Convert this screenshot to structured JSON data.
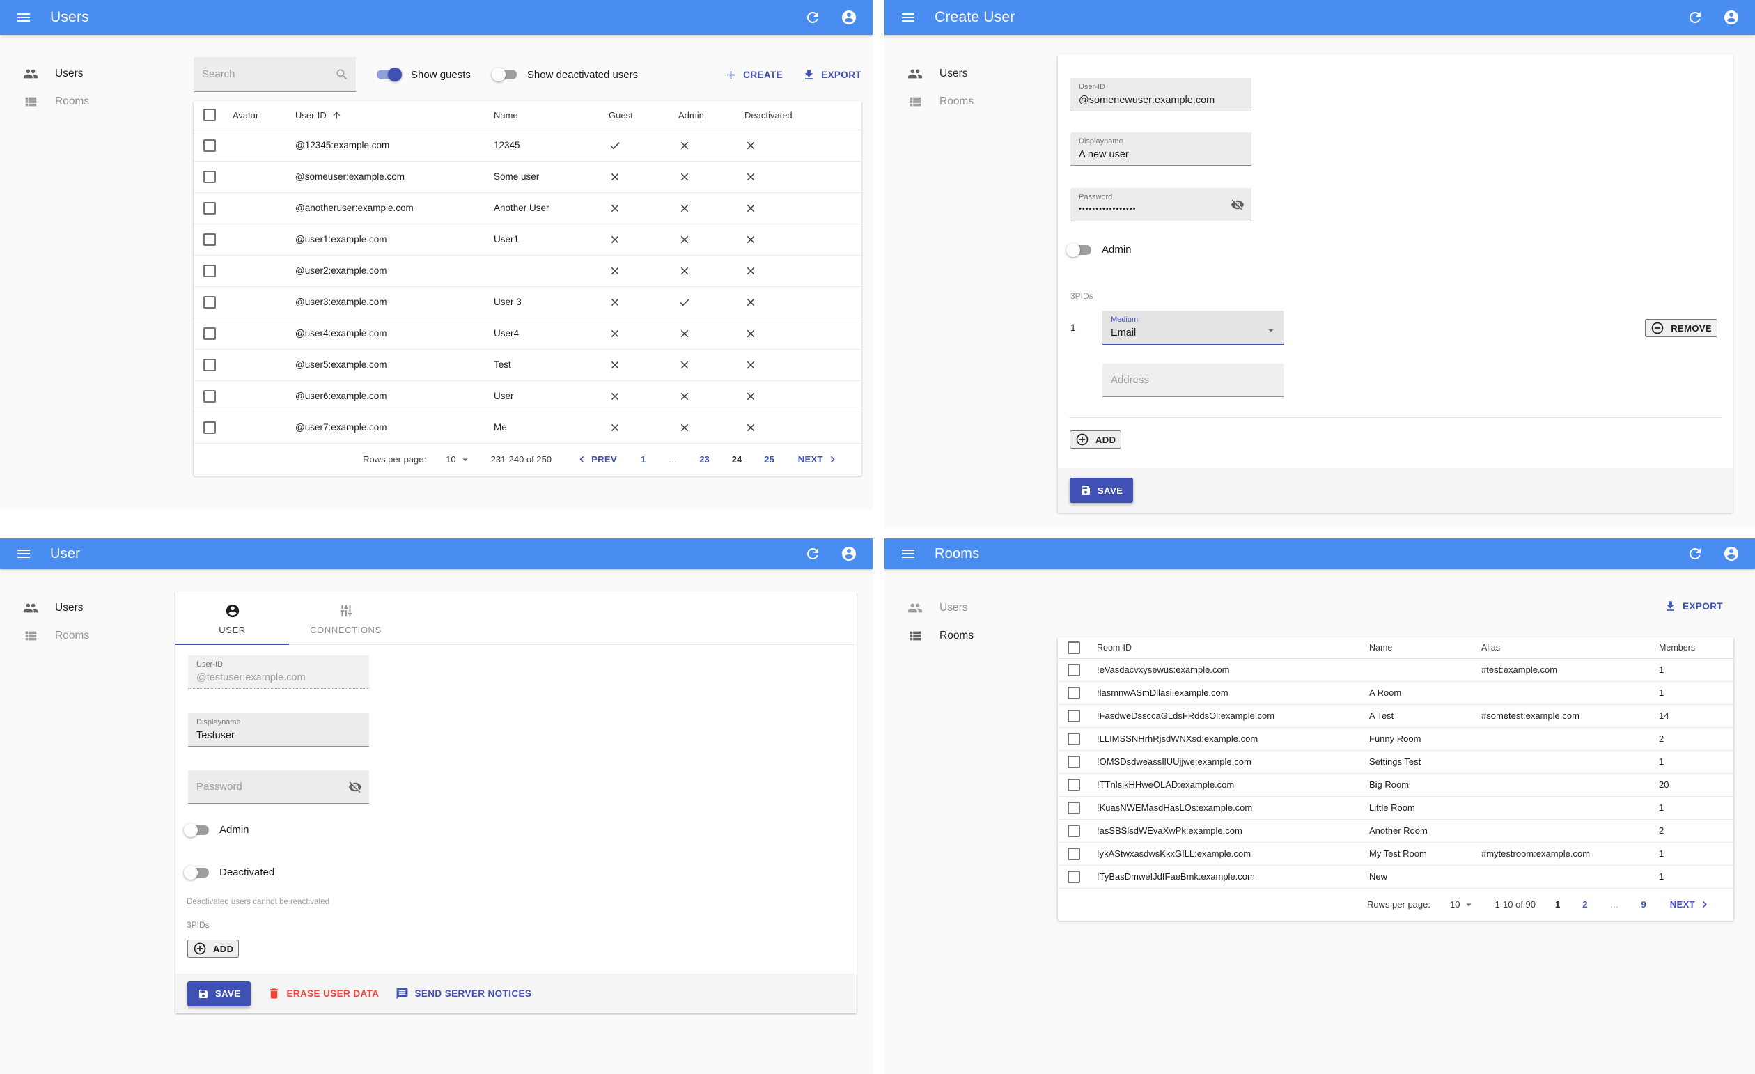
{
  "colors": {
    "appbar": "#4a8df0",
    "accent": "#3f51b5",
    "danger": "#f44336",
    "toggle_on": "#3f51b5"
  },
  "users_list": {
    "title": "Users",
    "sidebar": [
      {
        "label": "Users"
      },
      {
        "label": "Rooms"
      }
    ],
    "search_placeholder": "Search",
    "show_guests_label": "Show guests",
    "show_deactivated_label": "Show deactivated users",
    "create_label": "CREATE",
    "export_label": "EXPORT",
    "columns": {
      "avatar": "Avatar",
      "user_id": "User-ID",
      "name": "Name",
      "guest": "Guest",
      "admin": "Admin",
      "deactivated": "Deactivated"
    },
    "rows": [
      {
        "user_id": "@12345:example.com",
        "name": "12345",
        "guest": true,
        "admin": false,
        "deactivated": false
      },
      {
        "user_id": "@someuser:example.com",
        "name": "Some user",
        "guest": false,
        "admin": false,
        "deactivated": false
      },
      {
        "user_id": "@anotheruser:example.com",
        "name": "Another User",
        "guest": false,
        "admin": false,
        "deactivated": false
      },
      {
        "user_id": "@user1:example.com",
        "name": "User1",
        "guest": false,
        "admin": false,
        "deactivated": false
      },
      {
        "user_id": "@user2:example.com",
        "name": "",
        "guest": false,
        "admin": false,
        "deactivated": false
      },
      {
        "user_id": "@user3:example.com",
        "name": "User 3",
        "guest": false,
        "admin": true,
        "deactivated": false
      },
      {
        "user_id": "@user4:example.com",
        "name": "User4",
        "guest": false,
        "admin": false,
        "deactivated": false
      },
      {
        "user_id": "@user5:example.com",
        "name": "Test",
        "guest": false,
        "admin": false,
        "deactivated": false
      },
      {
        "user_id": "@user6:example.com",
        "name": "User",
        "guest": false,
        "admin": false,
        "deactivated": false
      },
      {
        "user_id": "@user7:example.com",
        "name": "Me",
        "guest": false,
        "admin": false,
        "deactivated": false
      }
    ],
    "pagination": {
      "rows_per_page_label": "Rows per page:",
      "rows_per_page": "10",
      "range": "231-240 of 250",
      "prev_label": "PREV",
      "next_label": "NEXT",
      "pages": [
        {
          "label": "1",
          "type": "link"
        },
        {
          "label": "…",
          "type": "ellipsis"
        },
        {
          "label": "23",
          "type": "link"
        },
        {
          "label": "24",
          "type": "current"
        },
        {
          "label": "25",
          "type": "link"
        }
      ]
    }
  },
  "create_user": {
    "title": "Create User",
    "sidebar": [
      {
        "label": "Users"
      },
      {
        "label": "Rooms"
      }
    ],
    "user_id": {
      "label": "User-ID",
      "value": "@somenewuser:example.com"
    },
    "displayname": {
      "label": "Displayname",
      "value": "A new user"
    },
    "password": {
      "label": "Password",
      "value": "•••••••••••••••••"
    },
    "admin_label": "Admin",
    "threepids_label": "3PIDs",
    "pid_row": {
      "index": "1",
      "medium_label": "Medium",
      "medium_value": "Email",
      "remove_label": "REMOVE",
      "address_placeholder": "Address"
    },
    "add_label": "ADD",
    "save_label": "SAVE"
  },
  "user_edit": {
    "title": "User",
    "sidebar": [
      {
        "label": "Users"
      },
      {
        "label": "Rooms"
      }
    ],
    "tabs": [
      {
        "label": "USER"
      },
      {
        "label": "CONNECTIONS"
      }
    ],
    "user_id": {
      "label": "User-ID",
      "value": "@testuser:example.com"
    },
    "displayname": {
      "label": "Displayname",
      "value": "Testuser"
    },
    "password_placeholder": "Password",
    "admin_label": "Admin",
    "deactivated_label": "Deactivated",
    "deactivated_helper": "Deactivated users cannot be reactivated",
    "threepids_label": "3PIDs",
    "add_label": "ADD",
    "save_label": "SAVE",
    "erase_label": "ERASE USER DATA",
    "notices_label": "SEND SERVER NOTICES"
  },
  "rooms_list": {
    "title": "Rooms",
    "sidebar": [
      {
        "label": "Users"
      },
      {
        "label": "Rooms"
      }
    ],
    "export_label": "EXPORT",
    "columns": {
      "room_id": "Room-ID",
      "name": "Name",
      "alias": "Alias",
      "members": "Members"
    },
    "rows": [
      {
        "room_id": "!eVasdacvxysewus:example.com",
        "name": "",
        "alias": "#test:example.com",
        "members": "1"
      },
      {
        "room_id": "!lasmnwASmDllasi:example.com",
        "name": "A Room",
        "alias": "",
        "members": "1"
      },
      {
        "room_id": "!FasdweDssccaGLdsFRddsOl:example.com",
        "name": "A Test",
        "alias": "#sometest:example.com",
        "members": "14"
      },
      {
        "room_id": "!LLIMSSNHrhRjsdWNXsd:example.com",
        "name": "Funny Room",
        "alias": "",
        "members": "2"
      },
      {
        "room_id": "!OMSDsdweassIlUUjjwe:example.com",
        "name": "Settings Test",
        "alias": "",
        "members": "1"
      },
      {
        "room_id": "!TTnlslkHHweOLAD:example.com",
        "name": "Big Room",
        "alias": "",
        "members": "20"
      },
      {
        "room_id": "!KuasNWEMasdHasLOs:example.com",
        "name": "Little Room",
        "alias": "",
        "members": "1"
      },
      {
        "room_id": "!asSBSlsdWEvaXwPk:example.com",
        "name": "Another Room",
        "alias": "",
        "members": "2"
      },
      {
        "room_id": "!ykAStwxasdwsKkxGILL:example.com",
        "name": "My Test Room",
        "alias": "#mytestroom:example.com",
        "members": "1"
      },
      {
        "room_id": "!TyBasDmweIJdfFaeBmk:example.com",
        "name": "New",
        "alias": "",
        "members": "1"
      }
    ],
    "pagination": {
      "rows_per_page_label": "Rows per page:",
      "rows_per_page": "10",
      "range": "1-10 of 90",
      "next_label": "NEXT",
      "pages": [
        {
          "label": "1",
          "type": "current"
        },
        {
          "label": "2",
          "type": "link"
        },
        {
          "label": "…",
          "type": "ellipsis"
        },
        {
          "label": "9",
          "type": "link"
        }
      ]
    }
  }
}
